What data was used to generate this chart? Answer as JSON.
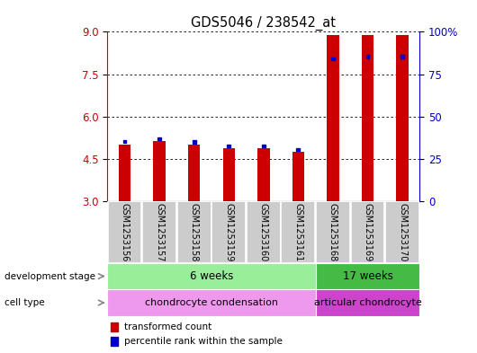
{
  "title": "GDS5046 / 238542_at",
  "samples": [
    "GSM1253156",
    "GSM1253157",
    "GSM1253158",
    "GSM1253159",
    "GSM1253160",
    "GSM1253161",
    "GSM1253168",
    "GSM1253169",
    "GSM1253170"
  ],
  "red_values": [
    5.02,
    5.12,
    5.0,
    4.87,
    4.87,
    4.76,
    8.9,
    8.9,
    8.9
  ],
  "blue_values": [
    5.12,
    5.22,
    5.1,
    4.97,
    4.97,
    4.82,
    8.05,
    8.12,
    8.12
  ],
  "ymin": 3,
  "ymax": 9,
  "yticks_left": [
    3,
    4.5,
    6,
    7.5,
    9
  ],
  "yticks_right": [
    0,
    25,
    50,
    75,
    100
  ],
  "bar_color": "#cc0000",
  "blue_color": "#0000cc",
  "bar_width": 0.35,
  "development_stage_groups": [
    {
      "label": "6 weeks",
      "start": 0,
      "end": 6,
      "color": "#99ee99"
    },
    {
      "label": "17 weeks",
      "start": 6,
      "end": 9,
      "color": "#44bb44"
    }
  ],
  "cell_type_groups": [
    {
      "label": "chondrocyte condensation",
      "start": 0,
      "end": 6,
      "color": "#ee99ee"
    },
    {
      "label": "articular chondrocyte",
      "start": 6,
      "end": 9,
      "color": "#cc44cc"
    }
  ],
  "dev_stage_label": "development stage",
  "cell_type_label": "cell type",
  "legend_red": "transformed count",
  "legend_blue": "percentile rank within the sample",
  "tick_label_color_left": "#cc0000",
  "tick_label_color_right": "#0000cc",
  "bg_color": "#ffffff",
  "label_bg": "#cccccc",
  "label_border": "#ffffff"
}
